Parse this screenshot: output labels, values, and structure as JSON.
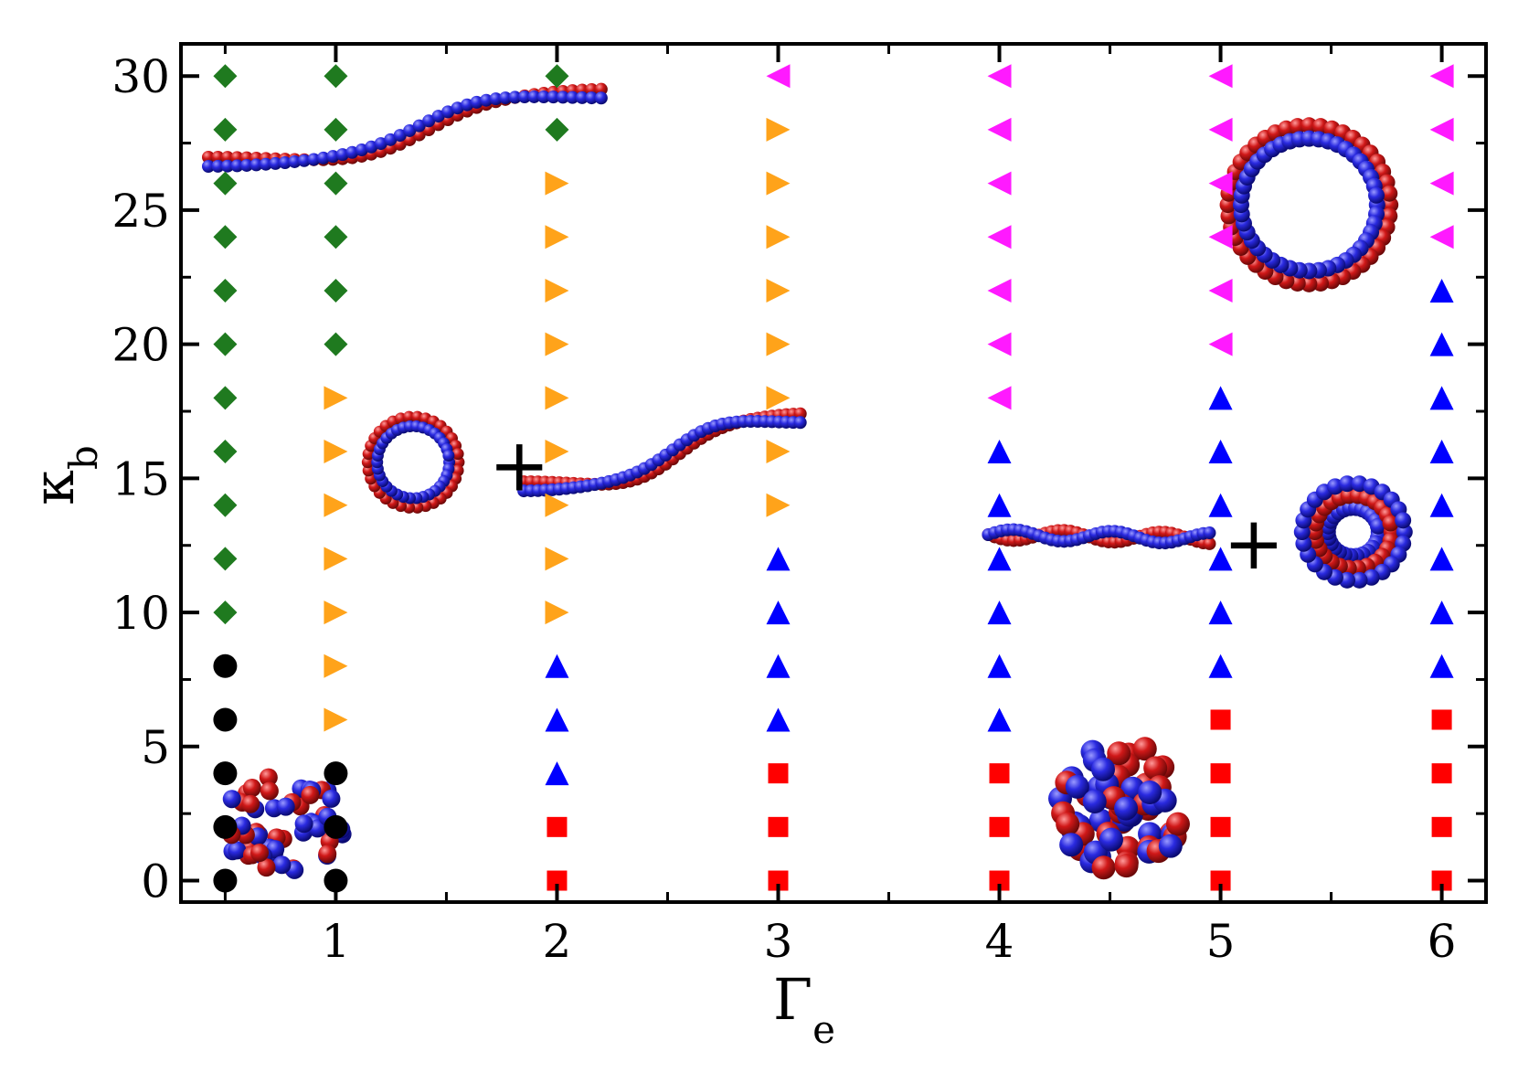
{
  "chart_data": {
    "type": "scatter",
    "title": "",
    "xlabel": {
      "symbol": "Γ",
      "subscript": "e"
    },
    "ylabel": {
      "symbol": "κ",
      "subscript": "b"
    },
    "xlim": [
      0.3,
      6.2
    ],
    "ylim": [
      -0.8,
      31.2
    ],
    "xticks": [
      1,
      2,
      3,
      4,
      5,
      6
    ],
    "yticks": [
      0,
      5,
      10,
      15,
      20,
      25,
      30
    ],
    "grid": false,
    "legend": "none",
    "colors": {
      "black-circle": "#000000",
      "green-diamond": "#1f7a1f",
      "orange-right-triangle": "#ffa31a",
      "magenta-left-triangle": "#ff1aff",
      "blue-up-triangle": "#0000ff",
      "red-square": "#ff0000"
    },
    "series": [
      {
        "marker": "circle",
        "color_key": "black-circle",
        "points": [
          [
            0.5,
            0
          ],
          [
            0.5,
            2
          ],
          [
            0.5,
            4
          ],
          [
            0.5,
            6
          ],
          [
            0.5,
            8
          ],
          [
            1,
            0
          ],
          [
            1,
            2
          ],
          [
            1,
            4
          ]
        ]
      },
      {
        "marker": "diamond",
        "color_key": "green-diamond",
        "points": [
          [
            0.5,
            10
          ],
          [
            0.5,
            12
          ],
          [
            0.5,
            14
          ],
          [
            0.5,
            16
          ],
          [
            0.5,
            18
          ],
          [
            0.5,
            20
          ],
          [
            0.5,
            22
          ],
          [
            0.5,
            24
          ],
          [
            0.5,
            26
          ],
          [
            0.5,
            28
          ],
          [
            0.5,
            30
          ],
          [
            1,
            20
          ],
          [
            1,
            22
          ],
          [
            1,
            24
          ],
          [
            1,
            26
          ],
          [
            1,
            28
          ],
          [
            1,
            30
          ],
          [
            2,
            28
          ],
          [
            2,
            30
          ]
        ]
      },
      {
        "marker": "triangle-right",
        "color_key": "orange-right-triangle",
        "points": [
          [
            1,
            6
          ],
          [
            1,
            8
          ],
          [
            1,
            10
          ],
          [
            1,
            12
          ],
          [
            1,
            14
          ],
          [
            1,
            16
          ],
          [
            1,
            18
          ],
          [
            2,
            10
          ],
          [
            2,
            12
          ],
          [
            2,
            14
          ],
          [
            2,
            16
          ],
          [
            2,
            18
          ],
          [
            2,
            20
          ],
          [
            2,
            22
          ],
          [
            2,
            24
          ],
          [
            2,
            26
          ],
          [
            3,
            14
          ],
          [
            3,
            16
          ],
          [
            3,
            18
          ],
          [
            3,
            20
          ],
          [
            3,
            22
          ],
          [
            3,
            24
          ],
          [
            3,
            26
          ],
          [
            3,
            28
          ]
        ]
      },
      {
        "marker": "triangle-left",
        "color_key": "magenta-left-triangle",
        "points": [
          [
            3,
            30
          ],
          [
            4,
            18
          ],
          [
            4,
            20
          ],
          [
            4,
            22
          ],
          [
            4,
            24
          ],
          [
            4,
            26
          ],
          [
            4,
            28
          ],
          [
            4,
            30
          ],
          [
            5,
            20
          ],
          [
            5,
            22
          ],
          [
            5,
            24
          ],
          [
            5,
            26
          ],
          [
            5,
            28
          ],
          [
            5,
            30
          ],
          [
            6,
            24
          ],
          [
            6,
            26
          ],
          [
            6,
            28
          ],
          [
            6,
            30
          ]
        ]
      },
      {
        "marker": "triangle-up",
        "color_key": "blue-up-triangle",
        "points": [
          [
            2,
            4
          ],
          [
            2,
            6
          ],
          [
            2,
            8
          ],
          [
            3,
            6
          ],
          [
            3,
            8
          ],
          [
            3,
            10
          ],
          [
            3,
            12
          ],
          [
            4,
            6
          ],
          [
            4,
            8
          ],
          [
            4,
            10
          ],
          [
            4,
            12
          ],
          [
            4,
            14
          ],
          [
            4,
            16
          ],
          [
            5,
            8
          ],
          [
            5,
            10
          ],
          [
            5,
            12
          ],
          [
            5,
            14
          ],
          [
            5,
            16
          ],
          [
            5,
            18
          ],
          [
            6,
            8
          ],
          [
            6,
            10
          ],
          [
            6,
            12
          ],
          [
            6,
            14
          ],
          [
            6,
            16
          ],
          [
            6,
            18
          ],
          [
            6,
            20
          ],
          [
            6,
            22
          ]
        ]
      },
      {
        "marker": "square",
        "color_key": "red-square",
        "points": [
          [
            2,
            0
          ],
          [
            2,
            2
          ],
          [
            3,
            0
          ],
          [
            3,
            2
          ],
          [
            3,
            4
          ],
          [
            4,
            0
          ],
          [
            4,
            2
          ],
          [
            4,
            4
          ],
          [
            5,
            0
          ],
          [
            5,
            2
          ],
          [
            5,
            4
          ],
          [
            5,
            6
          ],
          [
            6,
            0
          ],
          [
            6,
            2
          ],
          [
            6,
            4
          ],
          [
            6,
            6
          ]
        ]
      }
    ],
    "annotations": [
      {
        "name": "collapsed-globule-left",
        "x": 0.75,
        "y": 2.2
      },
      {
        "name": "extended-double-strand-top",
        "x": 1.4,
        "y": 27.8
      },
      {
        "name": "ring-mid",
        "x": 1.35,
        "y": 15.6
      },
      {
        "name": "extended-double-strand-mid",
        "x": 2.5,
        "y": 15.7
      },
      {
        "name": "ring-top-right",
        "x": 5.4,
        "y": 25.2
      },
      {
        "name": "twisted-strand-right",
        "x": 4.45,
        "y": 12.9
      },
      {
        "name": "toroid-right",
        "x": 5.6,
        "y": 13
      },
      {
        "name": "collapsed-globule-right",
        "x": 4.55,
        "y": 2.8
      }
    ],
    "plus_signs": [
      {
        "text": "+",
        "x": 1.83,
        "y": 15.5
      },
      {
        "text": "+",
        "x": 5.15,
        "y": 12.6
      }
    ]
  }
}
